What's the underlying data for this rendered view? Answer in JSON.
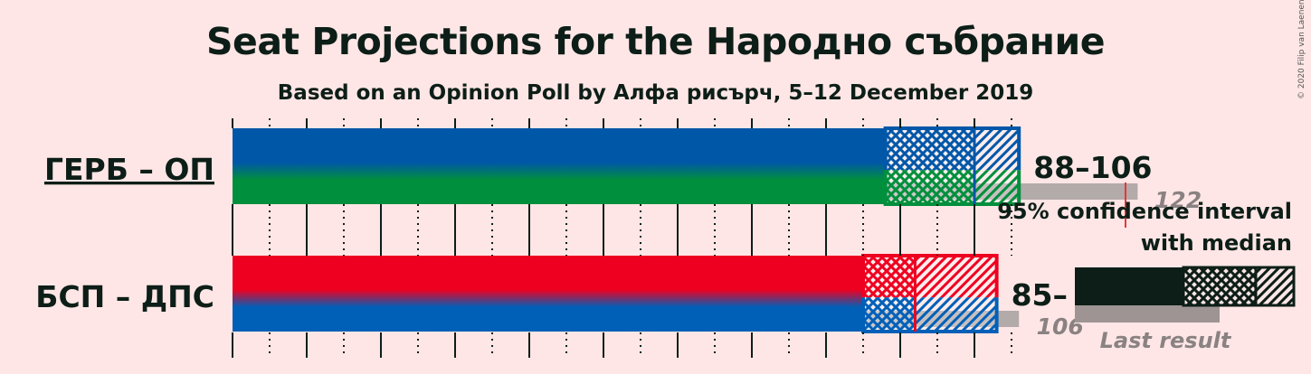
{
  "title": "Seat Projections for the Народно събрание",
  "subtitle": "Based on an Opinion Poll by Алфа рисърч, 5–12 December 2019",
  "copyright": "© 2020 Filip van Laenen",
  "chart_data": {
    "type": "bar",
    "orientation": "horizontal",
    "xlim": [
      0,
      106
    ],
    "tick_step": 5,
    "series": [
      {
        "party": "ГЕРБ – ОП",
        "underlined": true,
        "colors": [
          "#0057A8",
          "#008F3C"
        ],
        "ci_low": 88,
        "ci_high": 106,
        "median": 100,
        "ci_label": "88–106",
        "last_result": 122,
        "last_label": "122"
      },
      {
        "party": "БСП – ДПС",
        "underlined": false,
        "colors": [
          "#EE0020",
          "#0060B8"
        ],
        "ci_low": 85,
        "ci_high": 103,
        "median": 92,
        "ci_label": "85–",
        "last_result": 106,
        "last_label": "106"
      }
    ]
  },
  "legend": {
    "ci_text_line1": "95% confidence interval",
    "ci_text_line2": "with median",
    "last_result_text": "Last result"
  }
}
